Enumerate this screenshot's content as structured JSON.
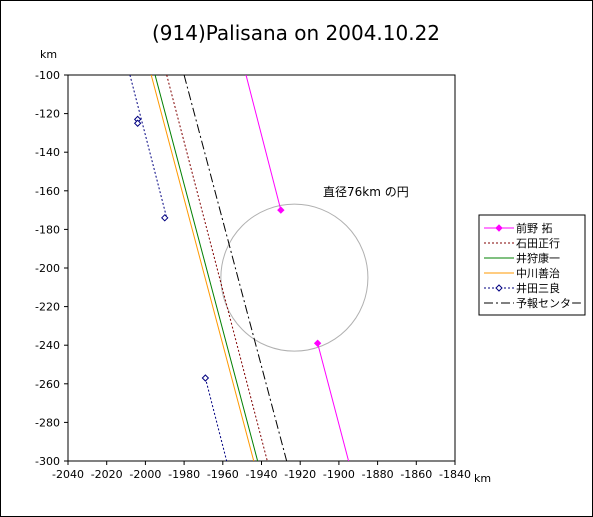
{
  "chart_data": {
    "type": "line",
    "title": "(914)Palisana on 2004.10.22",
    "xlabel": "km",
    "ylabel": "km",
    "xlim": [
      -2040,
      -1840
    ],
    "ylim": [
      -300,
      -100
    ],
    "x_ticks": [
      -2040,
      -2020,
      -2000,
      -1980,
      -1960,
      -1940,
      -1920,
      -1900,
      -1880,
      -1860,
      -1840
    ],
    "y_ticks": [
      -100,
      -120,
      -140,
      -160,
      -180,
      -200,
      -220,
      -240,
      -260,
      -280,
      -300
    ],
    "annotation": "直径76km の円",
    "circle": {
      "cx": -1923,
      "cy": -205,
      "diameter": 76
    },
    "legend_position": "right",
    "series": [
      {
        "name": "前野 拓",
        "color": "#ff00ff",
        "style": "solid",
        "marker": "diamond-filled",
        "segments": [
          [
            [
              -1948,
              -100
            ],
            [
              -1930,
              -170
            ]
          ],
          [
            [
              -1911,
              -239
            ],
            [
              -1895,
              -300
            ]
          ]
        ],
        "markers": [
          [
            -1930,
            -170
          ],
          [
            -1911,
            -239
          ]
        ]
      },
      {
        "name": "石田正行",
        "color": "#800000",
        "style": "dotted",
        "segments": [
          [
            [
              -1989,
              -100
            ],
            [
              -1937,
              -300
            ]
          ]
        ]
      },
      {
        "name": "井狩康一",
        "color": "#008000",
        "style": "solid",
        "segments": [
          [
            [
              -1995,
              -100
            ],
            [
              -1942,
              -300
            ]
          ]
        ]
      },
      {
        "name": "中川善治",
        "color": "#ff9900",
        "style": "solid",
        "segments": [
          [
            [
              -1997,
              -100
            ],
            [
              -1944,
              -300
            ]
          ]
        ]
      },
      {
        "name": "井田三良",
        "color": "#000080",
        "style": "dotted",
        "marker": "diamond-open",
        "segments": [
          [
            [
              -2008,
              -100
            ],
            [
              -1989,
              -174
            ]
          ],
          [
            [
              -1969,
              -257
            ],
            [
              -1958,
              -300
            ]
          ]
        ],
        "markers": [
          [
            -2004,
            -123
          ],
          [
            -2004,
            -125
          ],
          [
            -1990,
            -174
          ],
          [
            -1969,
            -257
          ]
        ]
      },
      {
        "name": "予報センター",
        "color": "#000000",
        "style": "dashdot",
        "segments": [
          [
            [
              -1980,
              -100
            ],
            [
              -1927,
              -300
            ]
          ]
        ]
      }
    ]
  }
}
